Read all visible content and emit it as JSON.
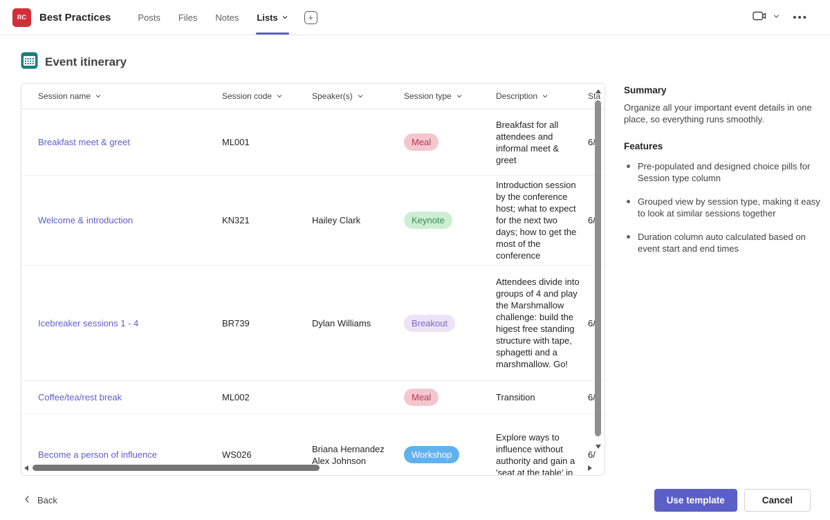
{
  "header": {
    "avatar_initials": "RC",
    "avatar_color": "#d23039",
    "title": "Best Practices",
    "tabs": [
      {
        "label": "Posts",
        "active": false,
        "dropdown": false
      },
      {
        "label": "Files",
        "active": false,
        "dropdown": false
      },
      {
        "label": "Notes",
        "active": false,
        "dropdown": false
      },
      {
        "label": "Lists",
        "active": true,
        "dropdown": true
      }
    ],
    "accent_color": "#5b5fc7"
  },
  "icons": {
    "add_tab": "plus-square",
    "meet": "video-camera",
    "meet_dropdown": "chevron-down",
    "more": "ellipsis-horizontal",
    "page": "calendar",
    "back": "chevron-left",
    "column_sort": "chevron-down"
  },
  "page": {
    "title": "Event itinerary",
    "icon_color": "#1b7e79"
  },
  "table": {
    "columns": [
      "Session name",
      "Session code",
      "Speaker(s)",
      "Session type",
      "Description",
      "Sta"
    ],
    "pill_styles": {
      "Meal": {
        "bg": "#f5c6ce",
        "fg": "#ad3a55"
      },
      "Keynote": {
        "bg": "#cdeed3",
        "fg": "#3a8a4d"
      },
      "Breakout": {
        "bg": "#ebe4f7",
        "fg": "#8465c2"
      },
      "Workshop": {
        "bg": "#62b1ef",
        "fg": "#ffffff"
      }
    },
    "rows": [
      {
        "name": "Breakfast meet & greet",
        "code": "ML001",
        "speakers": [],
        "type": "Meal",
        "description": "Breakfast for all attendees and informal meet & greet",
        "start": "6/",
        "min_height": 96
      },
      {
        "name": "Welcome & introduction",
        "code": "KN321",
        "speakers": [
          "Hailey Clark"
        ],
        "type": "Keynote",
        "description": "Introduction session by the conference host; what to expect for the next two days; how to get the most of the conference",
        "start": "6/",
        "min_height": 130
      },
      {
        "name": "Icebreaker sessions 1 - 4",
        "code": "BR739",
        "speakers": [
          "Dylan Williams"
        ],
        "type": "Breakout",
        "description": "Attendees divide into groups of 4 and play the Marshmallow challenge: build the higest free standing structure with tape, sphagetti and a marshmallow. Go!",
        "start": "6/",
        "min_height": 167
      },
      {
        "name": "Coffee/tea/rest break",
        "code": "ML002",
        "speakers": [],
        "type": "Meal",
        "description": "Transition",
        "start": "6/",
        "min_height": 48
      },
      {
        "name": "Become a person of influence",
        "code": "WS026",
        "speakers": [
          "Briana Hernandez",
          "Alex Johnson"
        ],
        "type": "Workshop",
        "description": "Explore ways to influence without authority and gain a 'seat at the table' in",
        "start": "6/",
        "min_height": 118
      }
    ]
  },
  "info_panel": {
    "summary_title": "Summary",
    "summary_text": "Organize all your important event details in one place, so everything runs smoothly.",
    "features_title": "Features",
    "features": [
      "Pre-populated and designed choice pills for Session type column",
      "Grouped view by session type, making it easy to look at similar sessions together",
      "Duration column auto calculated based on event start and end times"
    ]
  },
  "footer": {
    "back_label": "Back",
    "use_template_label": "Use template",
    "cancel_label": "Cancel"
  }
}
